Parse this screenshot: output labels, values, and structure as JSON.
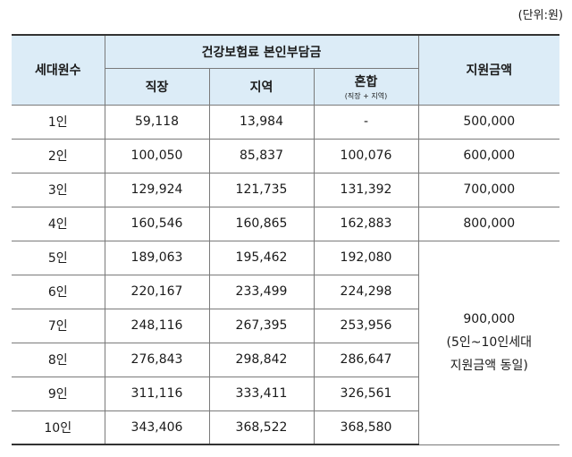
{
  "unit_note": "(단위:원)",
  "header": {
    "household": "세대원수",
    "premium_group": "건강보험료 본인부담금",
    "workplace": "직장",
    "region": "지역",
    "mixed": "혼합",
    "mixed_sub": "(직장 + 지역)",
    "amount": "지원금액"
  },
  "rows": [
    {
      "size": "1인",
      "workplace": "59,118",
      "region": "13,984",
      "mixed": "-",
      "amount": "500,000"
    },
    {
      "size": "2인",
      "workplace": "100,050",
      "region": "85,837",
      "mixed": "100,076",
      "amount": "600,000"
    },
    {
      "size": "3인",
      "workplace": "129,924",
      "region": "121,735",
      "mixed": "131,392",
      "amount": "700,000"
    },
    {
      "size": "4인",
      "workplace": "160,546",
      "region": "160,865",
      "mixed": "162,883",
      "amount": "800,000"
    },
    {
      "size": "5인",
      "workplace": "189,063",
      "region": "195,462",
      "mixed": "192,080"
    },
    {
      "size": "6인",
      "workplace": "220,167",
      "region": "233,499",
      "mixed": "224,298"
    },
    {
      "size": "7인",
      "workplace": "248,116",
      "region": "267,395",
      "mixed": "253,956"
    },
    {
      "size": "8인",
      "workplace": "276,843",
      "region": "298,842",
      "mixed": "286,647"
    },
    {
      "size": "9인",
      "workplace": "311,116",
      "region": "333,411",
      "mixed": "326,561"
    },
    {
      "size": "10인",
      "workplace": "343,406",
      "region": "368,522",
      "mixed": "368,580"
    }
  ],
  "merged_amount": {
    "value": "900,000",
    "note_line1": "(5인~10인세대",
    "note_line2": "지원금액 동일)"
  }
}
